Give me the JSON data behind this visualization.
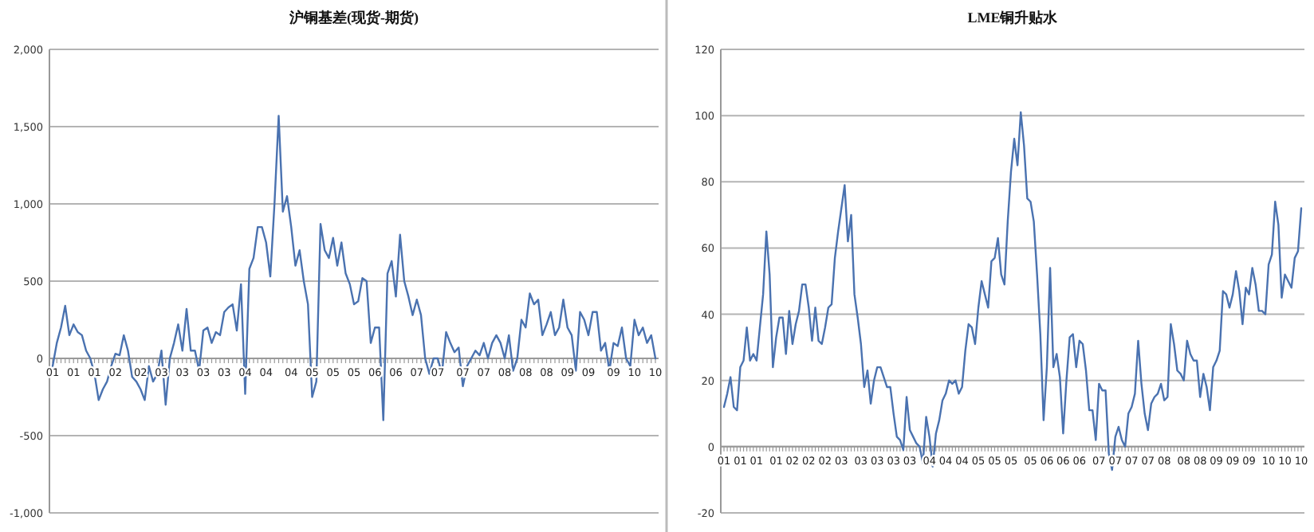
{
  "chart_data": [
    {
      "type": "line",
      "title": "沪铜基差(现货-期货)",
      "categories": [
        "01",
        null,
        null,
        null,
        null,
        "01",
        null,
        null,
        null,
        null,
        "01",
        null,
        null,
        null,
        null,
        "02",
        null,
        null,
        null,
        null,
        null,
        "02",
        null,
        null,
        null,
        null,
        "03",
        null,
        null,
        null,
        null,
        "03",
        null,
        null,
        null,
        null,
        "03",
        null,
        null,
        null,
        null,
        "03",
        null,
        null,
        null,
        null,
        "04",
        null,
        null,
        null,
        null,
        "04",
        null,
        null,
        null,
        null,
        null,
        "04",
        null,
        null,
        null,
        null,
        "05",
        null,
        null,
        null,
        null,
        "05",
        null,
        null,
        null,
        null,
        "05",
        null,
        null,
        null,
        null,
        "06",
        null,
        null,
        null,
        null,
        "06",
        null,
        null,
        null,
        null,
        "07",
        null,
        null,
        null,
        null,
        "07",
        null,
        null,
        null,
        null,
        null,
        "07",
        null,
        null,
        null,
        null,
        "07",
        null,
        null,
        null,
        null,
        "08",
        null,
        null,
        null,
        null,
        "08",
        null,
        null,
        null,
        null,
        "08",
        null,
        null,
        null,
        null,
        "09",
        null,
        null,
        null,
        null,
        "09",
        null,
        null,
        null,
        null,
        null,
        "09",
        null,
        null,
        null,
        null,
        "10",
        null,
        null,
        null,
        null,
        "10"
      ],
      "series": [
        {
          "color": "#4a72b0",
          "values": [
            -50,
            100,
            200,
            340,
            150,
            220,
            170,
            150,
            50,
            0,
            -100,
            -270,
            -200,
            -150,
            -50,
            30,
            20,
            150,
            50,
            -120,
            -150,
            -200,
            -270,
            -50,
            -150,
            -100,
            50,
            -300,
            0,
            100,
            220,
            50,
            320,
            50,
            50,
            -80,
            180,
            200,
            100,
            170,
            150,
            300,
            330,
            350,
            180,
            480,
            -230,
            580,
            650,
            850,
            850,
            750,
            530,
            1000,
            1570,
            950,
            1050,
            850,
            600,
            700,
            500,
            350,
            -250,
            -150,
            870,
            700,
            650,
            780,
            600,
            750,
            550,
            480,
            350,
            370,
            520,
            500,
            100,
            200,
            200,
            -400,
            550,
            630,
            400,
            800,
            500,
            400,
            280,
            380,
            280,
            0,
            -100,
            0,
            0,
            -100,
            170,
            100,
            40,
            70,
            -180,
            -50,
            0,
            50,
            20,
            100,
            0,
            100,
            150,
            100,
            0,
            150,
            -80,
            0,
            250,
            200,
            420,
            350,
            380,
            150,
            220,
            300,
            150,
            200,
            380,
            200,
            150,
            -80,
            300,
            250,
            150,
            300,
            300,
            50,
            100,
            -80,
            100,
            80,
            200,
            0,
            -50,
            250,
            150,
            200,
            100,
            150,
            0
          ]
        }
      ],
      "ylim": [
        -1000,
        2000
      ],
      "yticks": [
        {
          "value": -1000,
          "label": "-1,000"
        },
        -500,
        0,
        500,
        {
          "value": 1000,
          "label": "1,000"
        },
        {
          "value": 1500,
          "label": "1,500"
        },
        {
          "value": 2000,
          "label": "2,000"
        }
      ],
      "grid": "y"
    },
    {
      "type": "line",
      "title": "LME铜升贴水",
      "categories": [
        "01",
        null,
        null,
        null,
        null,
        "01",
        null,
        null,
        null,
        null,
        "01",
        null,
        null,
        null,
        null,
        null,
        "01",
        null,
        null,
        null,
        null,
        "02",
        null,
        null,
        null,
        null,
        "02",
        null,
        null,
        null,
        null,
        "02",
        null,
        null,
        null,
        null,
        "03",
        null,
        null,
        null,
        null,
        null,
        "03",
        null,
        null,
        null,
        null,
        "03",
        null,
        null,
        null,
        null,
        "03",
        null,
        null,
        null,
        null,
        "03",
        null,
        null,
        null,
        null,
        null,
        "04",
        null,
        null,
        null,
        null,
        "04",
        null,
        null,
        null,
        null,
        "04",
        null,
        null,
        null,
        null,
        "05",
        null,
        null,
        null,
        null,
        "05",
        null,
        null,
        null,
        null,
        "05",
        null,
        null,
        null,
        null,
        null,
        "05",
        null,
        null,
        null,
        null,
        "06",
        null,
        null,
        null,
        null,
        "06",
        null,
        null,
        null,
        null,
        "06",
        null,
        null,
        null,
        null,
        null,
        "07",
        null,
        null,
        null,
        null,
        "07",
        null,
        null,
        null,
        null,
        "07",
        null,
        null,
        null,
        null,
        "07",
        null,
        null,
        null,
        null,
        "08",
        null,
        null,
        null,
        null,
        null,
        "08",
        null,
        null,
        null,
        null,
        "08",
        null,
        null,
        null,
        null,
        "09",
        null,
        null,
        null,
        null,
        "09",
        null,
        null,
        null,
        null,
        "09",
        null,
        null,
        null,
        null,
        null,
        "10",
        null,
        null,
        null,
        null,
        "10",
        null,
        null,
        null,
        null,
        "10"
      ],
      "series": [
        {
          "color": "#4a72b0",
          "values": [
            12,
            16,
            21,
            12,
            11,
            24,
            26,
            36,
            26,
            28,
            26,
            36,
            46,
            65,
            52,
            24,
            33,
            39,
            39,
            28,
            41,
            31,
            37,
            41,
            49,
            49,
            42,
            32,
            42,
            32,
            31,
            36,
            42,
            43,
            57,
            65,
            72,
            79,
            62,
            70,
            46,
            39,
            31,
            18,
            23,
            13,
            20,
            24,
            24,
            21,
            18,
            18,
            10,
            3,
            2,
            -1,
            15,
            5,
            3,
            1,
            0,
            -5,
            9,
            3,
            -6,
            4,
            8,
            14,
            16,
            20,
            19,
            20,
            16,
            18,
            29,
            37,
            36,
            31,
            42,
            50,
            46,
            42,
            56,
            57,
            63,
            52,
            49,
            68,
            83,
            93,
            85,
            101,
            91,
            75,
            74,
            68,
            52,
            34,
            8,
            24,
            54,
            24,
            28,
            21,
            4,
            20,
            33,
            34,
            24,
            32,
            31,
            23,
            11,
            11,
            2,
            19,
            17,
            17,
            -2,
            -7,
            3,
            6,
            2,
            0,
            10,
            12,
            16,
            32,
            19,
            10,
            5,
            13,
            15,
            16,
            19,
            14,
            15,
            37,
            31,
            23,
            22,
            20,
            32,
            28,
            26,
            26,
            15,
            22,
            18,
            11,
            24,
            26,
            29,
            47,
            46,
            42,
            46,
            53,
            47,
            37,
            48,
            46,
            54,
            49,
            41,
            41,
            40,
            55,
            58,
            74,
            67,
            45,
            52,
            50,
            48,
            57,
            59,
            72
          ]
        }
      ],
      "ylim": [
        -20,
        120
      ],
      "yticks": [
        -20,
        0,
        20,
        40,
        60,
        80,
        100,
        120
      ],
      "grid": "y"
    }
  ]
}
